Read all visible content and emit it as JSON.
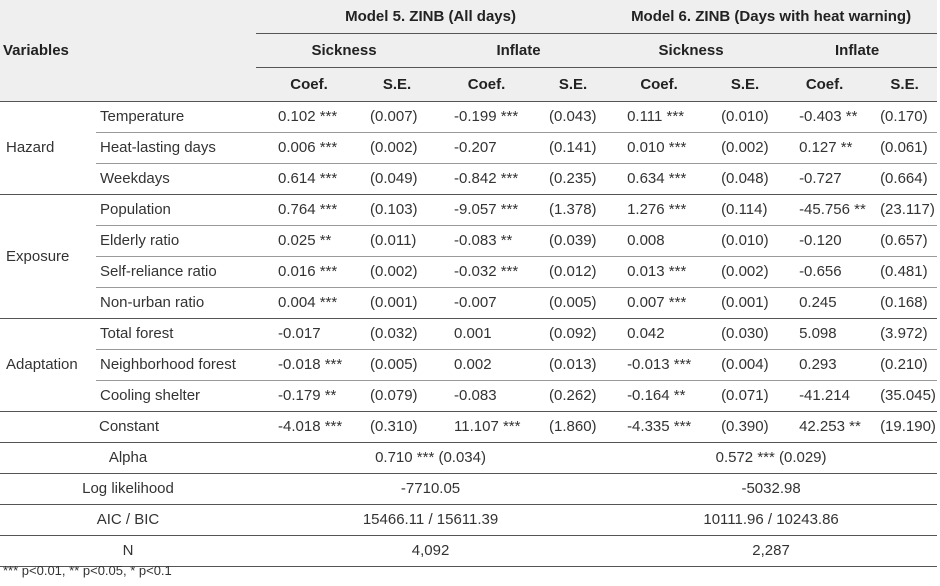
{
  "header": {
    "variables": "Variables",
    "model5": "Model 5. ZINB (All days)",
    "model6": "Model 6. ZINB (Days with heat warning)",
    "sickness": "Sickness",
    "inflate": "Inflate",
    "coef": "Coef.",
    "se": "S.E."
  },
  "groups": {
    "hazard": "Hazard",
    "exposure": "Exposure",
    "adaptation": "Adaptation"
  },
  "rows": [
    {
      "name": "Temperature",
      "v": [
        "0.102 ***",
        "(0.007)",
        "-0.199 ***",
        "(0.043)",
        "0.111 ***",
        "(0.010)",
        "-0.403 **",
        "(0.170)"
      ]
    },
    {
      "name": "Heat-lasting days",
      "v": [
        "0.006 ***",
        "(0.002)",
        "-0.207",
        "(0.141)",
        "0.010 ***",
        "(0.002)",
        "0.127 **",
        "(0.061)"
      ]
    },
    {
      "name": "Weekdays",
      "v": [
        "0.614 ***",
        "(0.049)",
        "-0.842 ***",
        "(0.235)",
        "0.634 ***",
        "(0.048)",
        "-0.727",
        "(0.664)"
      ]
    },
    {
      "name": "Population",
      "v": [
        "0.764 ***",
        "(0.103)",
        "-9.057 ***",
        "(1.378)",
        "1.276 ***",
        "(0.114)",
        "-45.756 **",
        "(23.117)"
      ]
    },
    {
      "name": "Elderly ratio",
      "v": [
        "0.025 **",
        "(0.011)",
        "-0.083 **",
        "(0.039)",
        "0.008",
        "(0.010)",
        "-0.120",
        "(0.657)"
      ]
    },
    {
      "name": "Self-reliance ratio",
      "v": [
        "0.016 ***",
        "(0.002)",
        "-0.032 ***",
        "(0.012)",
        "0.013 ***",
        "(0.002)",
        "-0.656",
        "(0.481)"
      ]
    },
    {
      "name": "Non-urban ratio",
      "v": [
        "0.004 ***",
        "(0.001)",
        "-0.007",
        "(0.005)",
        "0.007 ***",
        "(0.001)",
        "0.245",
        "(0.168)"
      ]
    },
    {
      "name": "Total forest",
      "v": [
        "-0.017",
        "(0.032)",
        "0.001",
        "(0.092)",
        "0.042",
        "(0.030)",
        "5.098",
        "(3.972)"
      ]
    },
    {
      "name": "Neighborhood forest",
      "v": [
        "-0.018 ***",
        "(0.005)",
        "0.002",
        "(0.013)",
        "-0.013 ***",
        "(0.004)",
        "0.293",
        "(0.210)"
      ]
    },
    {
      "name": "Cooling shelter",
      "v": [
        "-0.179 **",
        "(0.079)",
        "-0.083",
        "(0.262)",
        "-0.164 **",
        "(0.071)",
        "-41.214",
        "(35.045)"
      ]
    },
    {
      "name": "Constant",
      "v": [
        "-4.018 ***",
        "(0.310)",
        "11.107 ***",
        "(1.860)",
        "-4.335 ***",
        "(0.390)",
        "42.253 **",
        "(19.190)"
      ]
    }
  ],
  "summary": {
    "alpha": {
      "label": "Alpha",
      "m5": "0.710 *** (0.034)",
      "m6": "0.572 *** (0.029)"
    },
    "loglik": {
      "label": "Log likelihood",
      "m5": "-7710.05",
      "m6": "-5032.98"
    },
    "aic": {
      "label": "AIC / BIC",
      "m5": "15466.11 / 15611.39",
      "m6": "10111.96 / 10243.86"
    },
    "n": {
      "label": "N",
      "m5": "4,092",
      "m6": "2,287"
    }
  },
  "footnote": "*** p<0.01, ** p<0.05, * p<0.1"
}
